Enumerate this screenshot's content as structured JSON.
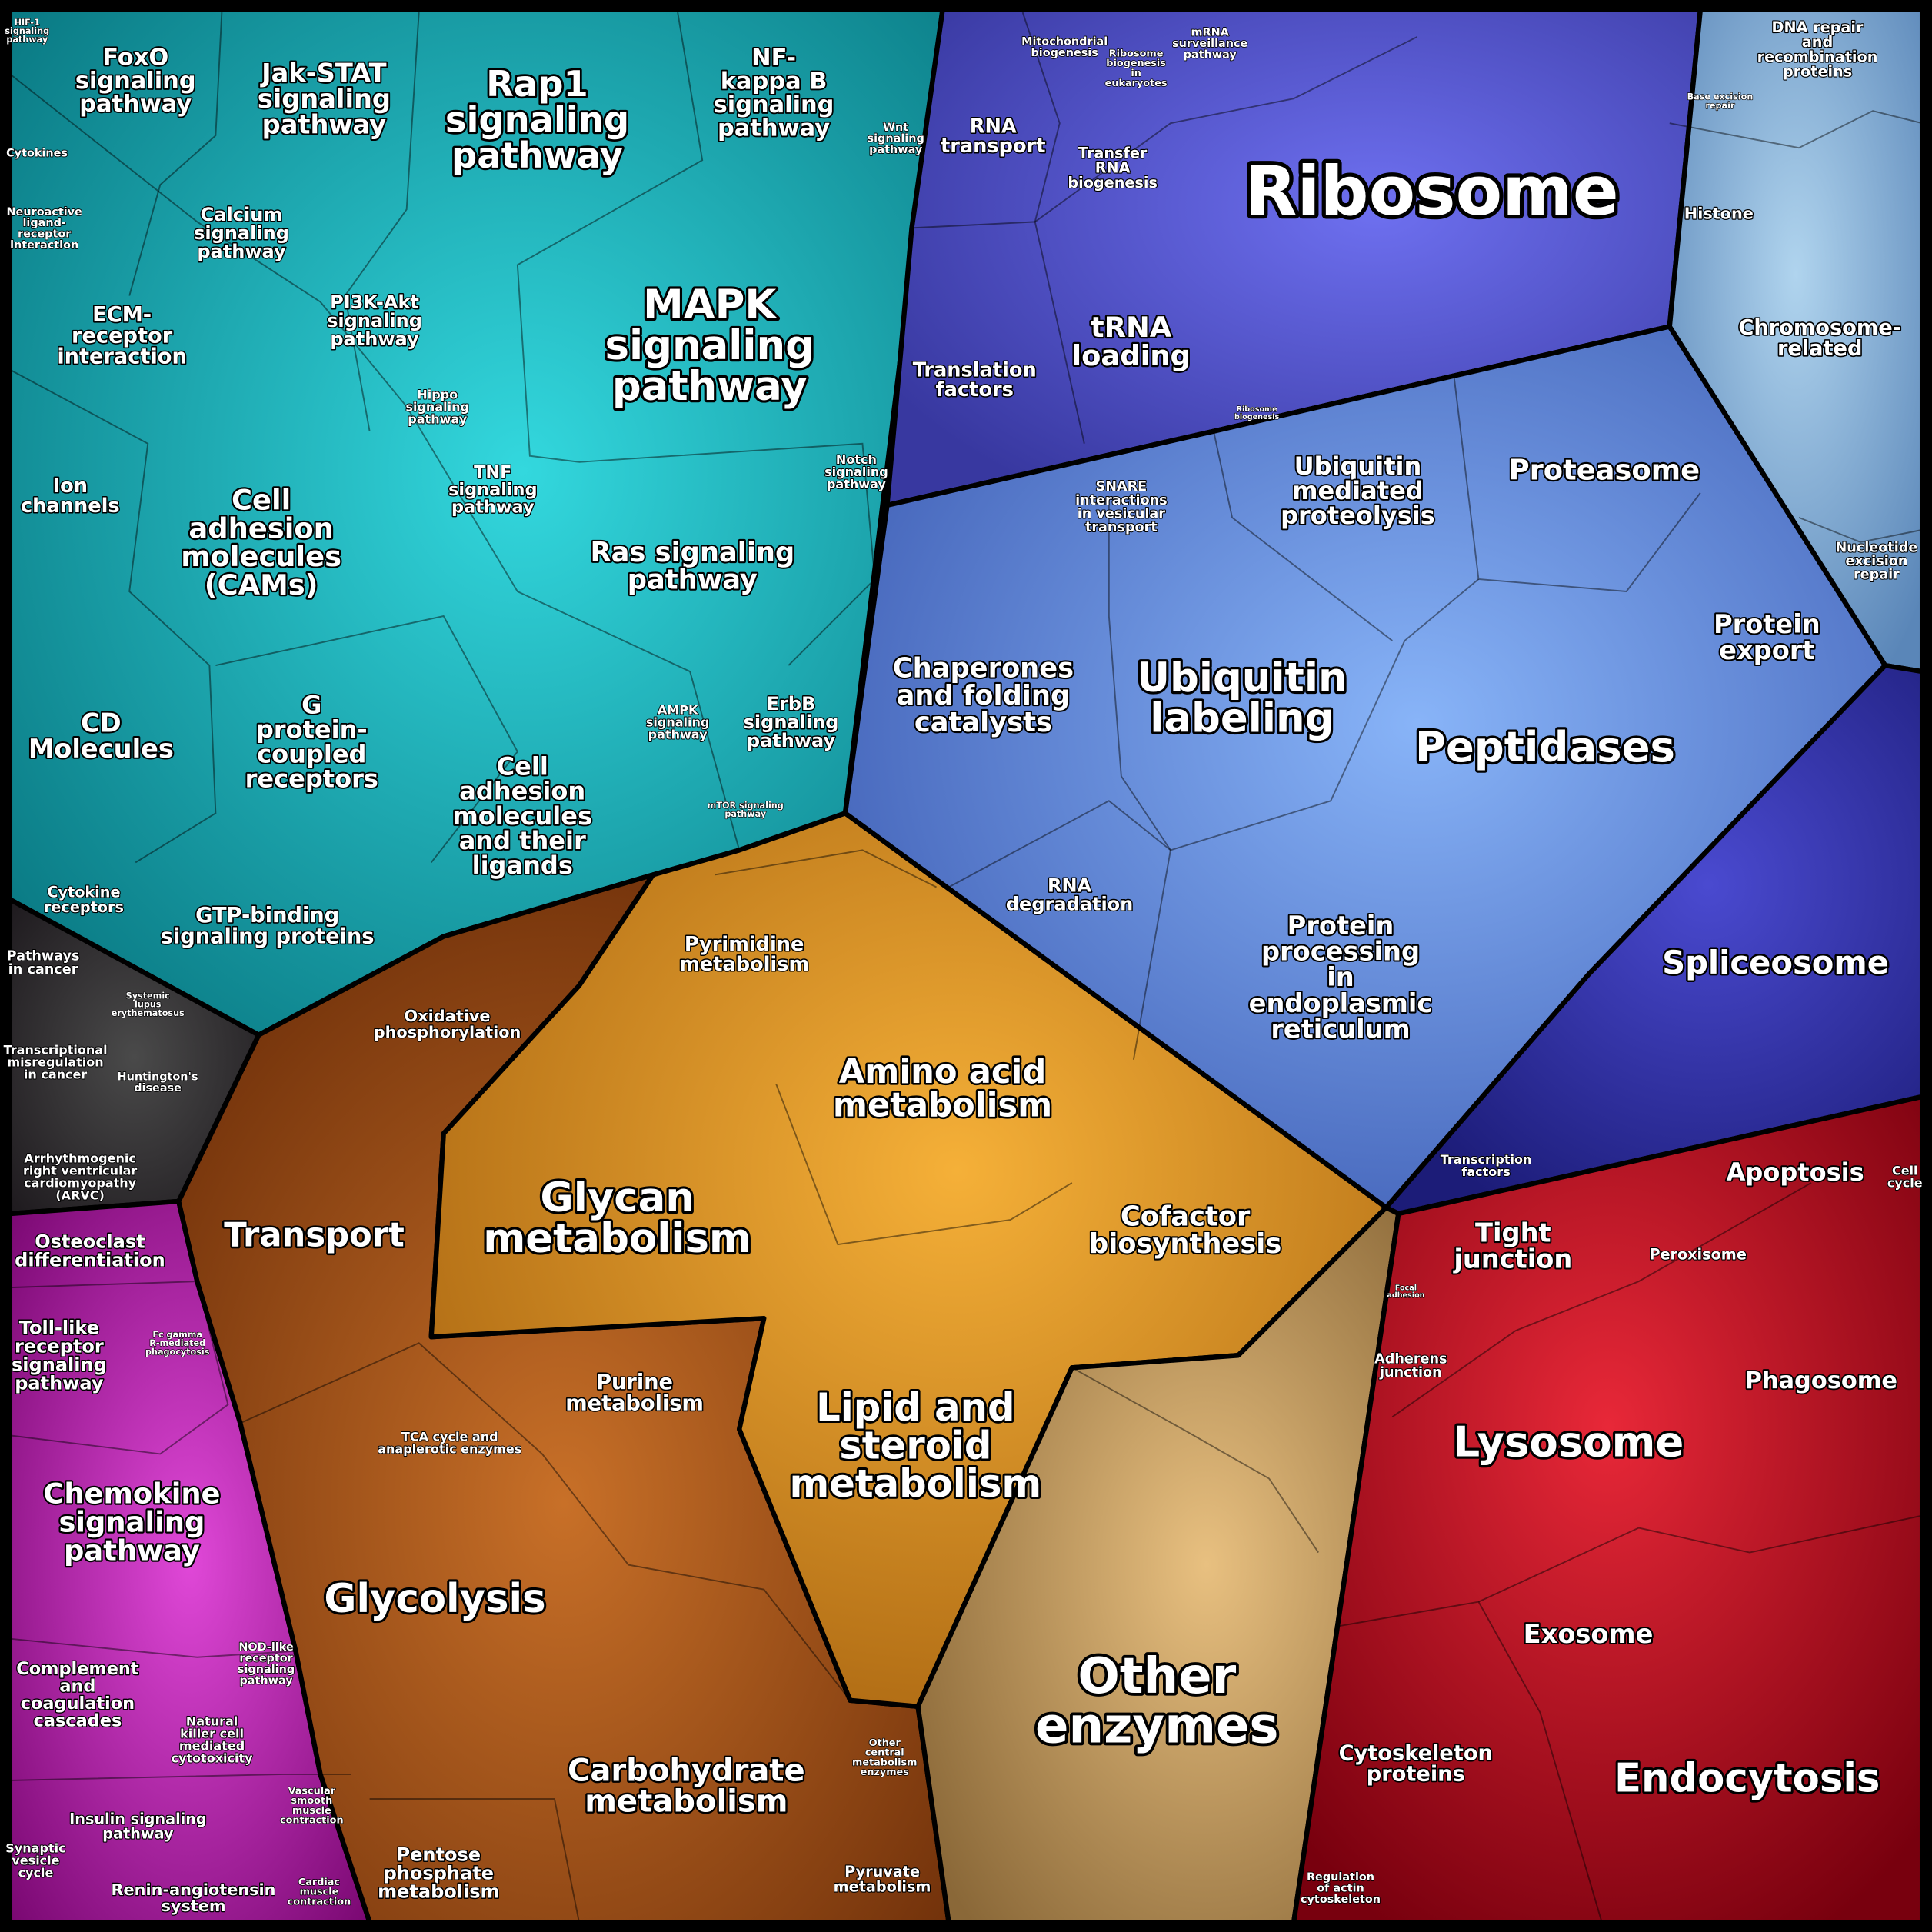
{
  "labels": [
    {
      "lines": [
        "HIF-1",
        "signaling",
        "pathway"
      ]
    },
    {
      "lines": [
        "FoxO",
        "signaling",
        "pathway"
      ]
    },
    {
      "lines": [
        "Jak-STAT",
        "signaling",
        "pathway"
      ]
    },
    {
      "lines": [
        "Rap1",
        "signaling",
        "pathway"
      ]
    },
    {
      "lines": [
        "NF-",
        "kappa B",
        "signaling",
        "pathway"
      ]
    },
    {
      "lines": [
        "Wnt",
        "signaling",
        "pathway"
      ]
    },
    {
      "lines": [
        "Cytokines"
      ]
    },
    {
      "lines": [
        "Neuroactive",
        "ligand-",
        "receptor",
        "interaction"
      ]
    },
    {
      "lines": [
        "Calcium",
        "signaling",
        "pathway"
      ]
    },
    {
      "lines": [
        "ECM-",
        "receptor",
        "interaction"
      ]
    },
    {
      "lines": [
        "PI3K-Akt",
        "signaling",
        "pathway"
      ]
    },
    {
      "lines": [
        "MAPK",
        "signaling",
        "pathway"
      ]
    },
    {
      "lines": [
        "Hippo",
        "signaling",
        "pathway"
      ]
    },
    {
      "lines": [
        "Notch",
        "signaling",
        "pathway"
      ]
    },
    {
      "lines": [
        "Ion",
        "channels"
      ]
    },
    {
      "lines": [
        "Cell",
        "adhesion",
        "molecules",
        "(CAMs)"
      ]
    },
    {
      "lines": [
        "TNF",
        "signaling",
        "pathway"
      ]
    },
    {
      "lines": [
        "Ras signaling",
        "pathway"
      ]
    },
    {
      "lines": [
        "CD",
        "Molecules"
      ]
    },
    {
      "lines": [
        "G",
        "protein-",
        "coupled",
        "receptors"
      ]
    },
    {
      "lines": [
        "Cell",
        "adhesion",
        "molecules",
        "and their",
        "ligands"
      ]
    },
    {
      "lines": [
        "AMPK",
        "signaling",
        "pathway"
      ]
    },
    {
      "lines": [
        "ErbB",
        "signaling",
        "pathway"
      ]
    },
    {
      "lines": [
        "mTOR signaling",
        "pathway"
      ]
    },
    {
      "lines": [
        "Cytokine",
        "receptors"
      ]
    },
    {
      "lines": [
        "GTP-binding",
        "signaling proteins"
      ]
    },
    {
      "lines": [
        "Pathways",
        "in cancer"
      ]
    },
    {
      "lines": [
        "Systemic",
        "lupus",
        "erythematosus"
      ]
    },
    {
      "lines": [
        "Transcriptional",
        "misregulation",
        "in cancer"
      ]
    },
    {
      "lines": [
        "Huntington's",
        "disease"
      ]
    },
    {
      "lines": [
        "Arrhythmogenic",
        "right ventricular",
        "cardiomyopathy",
        "(ARVC)"
      ]
    },
    {
      "lines": [
        "Osteoclast",
        "differentiation"
      ]
    },
    {
      "lines": [
        "Toll-like",
        "receptor",
        "signaling",
        "pathway"
      ]
    },
    {
      "lines": [
        "Fc gamma",
        "R-mediated",
        "phagocytosis"
      ]
    },
    {
      "lines": [
        "Chemokine",
        "signaling",
        "pathway"
      ]
    },
    {
      "lines": [
        "Complement",
        "and",
        "coagulation",
        "cascades"
      ]
    },
    {
      "lines": [
        "NOD-like",
        "receptor",
        "signaling",
        "pathway"
      ]
    },
    {
      "lines": [
        "Natural",
        "killer cell",
        "mediated",
        "cytotoxicity"
      ]
    },
    {
      "lines": [
        "Insulin signaling",
        "pathway"
      ]
    },
    {
      "lines": [
        "Synaptic",
        "vesicle",
        "cycle"
      ]
    },
    {
      "lines": [
        "Renin-angiotensin",
        "system"
      ]
    },
    {
      "lines": [
        "Vascular",
        "smooth",
        "muscle",
        "contraction"
      ]
    },
    {
      "lines": [
        "Cardiac",
        "muscle",
        "contraction"
      ]
    },
    {
      "lines": [
        "Oxidative",
        "phosphorylation"
      ]
    },
    {
      "lines": [
        "Pyrimidine",
        "metabolism"
      ]
    },
    {
      "lines": [
        "Amino acid",
        "metabolism"
      ]
    },
    {
      "lines": [
        "Transport"
      ]
    },
    {
      "lines": [
        "Glycan",
        "metabolism"
      ]
    },
    {
      "lines": [
        "Cofactor",
        "biosynthesis"
      ]
    },
    {
      "lines": [
        "Purine",
        "metabolism"
      ]
    },
    {
      "lines": [
        "Lipid and",
        "steroid",
        "metabolism"
      ]
    },
    {
      "lines": [
        "TCA cycle and",
        "anaplerotic enzymes"
      ]
    },
    {
      "lines": [
        "Glycolysis"
      ]
    },
    {
      "lines": [
        "Other",
        "enzymes"
      ]
    },
    {
      "lines": [
        "Carbohydrate",
        "metabolism"
      ]
    },
    {
      "lines": [
        "Other",
        "central",
        "metabolism",
        "enzymes"
      ]
    },
    {
      "lines": [
        "Pentose",
        "phosphate",
        "metabolism"
      ]
    },
    {
      "lines": [
        "Pyruvate",
        "metabolism"
      ]
    },
    {
      "lines": [
        "Mitochondrial",
        "biogenesis"
      ]
    },
    {
      "lines": [
        "Ribosome",
        "biogenesis",
        "in",
        "eukaryotes"
      ]
    },
    {
      "lines": [
        "mRNA",
        "surveillance",
        "pathway"
      ]
    },
    {
      "lines": [
        "RNA",
        "transport"
      ]
    },
    {
      "lines": [
        "Transfer",
        "RNA",
        "biogenesis"
      ]
    },
    {
      "lines": [
        "Ribosome"
      ]
    },
    {
      "lines": [
        "DNA repair",
        "and",
        "recombination",
        "proteins"
      ]
    },
    {
      "lines": [
        "Base excision",
        "repair"
      ]
    },
    {
      "lines": [
        "Histone"
      ]
    },
    {
      "lines": [
        "Chromosome-",
        "related"
      ]
    },
    {
      "lines": [
        "tRNA",
        "loading"
      ]
    },
    {
      "lines": [
        "Translation",
        "factors"
      ]
    },
    {
      "lines": [
        "Ribosome",
        "biogenesis"
      ]
    },
    {
      "lines": [
        "Ubiquitin",
        "mediated",
        "proteolysis"
      ]
    },
    {
      "lines": [
        "Proteasome"
      ]
    },
    {
      "lines": [
        "SNARE",
        "interactions",
        "in vesicular",
        "transport"
      ]
    },
    {
      "lines": [
        "Nucleotide",
        "excision",
        "repair"
      ]
    },
    {
      "lines": [
        "Chaperones",
        "and folding",
        "catalysts"
      ]
    },
    {
      "lines": [
        "Ubiquitin",
        "labeling"
      ]
    },
    {
      "lines": [
        "Protein",
        "export"
      ]
    },
    {
      "lines": [
        "Peptidases"
      ]
    },
    {
      "lines": [
        "RNA",
        "degradation"
      ]
    },
    {
      "lines": [
        "Protein",
        "processing",
        "in",
        "endoplasmic",
        "reticulum"
      ]
    },
    {
      "lines": [
        "Spliceosome"
      ]
    },
    {
      "lines": [
        "Transcription",
        "factors"
      ]
    },
    {
      "lines": [
        "Apoptosis"
      ]
    },
    {
      "lines": [
        "Cell",
        "cycle"
      ]
    },
    {
      "lines": [
        "Tight",
        "junction"
      ]
    },
    {
      "lines": [
        "Peroxisome"
      ]
    },
    {
      "lines": [
        "Focal",
        "adhesion"
      ]
    },
    {
      "lines": [
        "Adherens",
        "junction"
      ]
    },
    {
      "lines": [
        "Phagosome"
      ]
    },
    {
      "lines": [
        "Lysosome"
      ]
    },
    {
      "lines": [
        "Exosome"
      ]
    },
    {
      "lines": [
        "Cytoskeleton",
        "proteins"
      ]
    },
    {
      "lines": [
        "Endocytosis"
      ]
    },
    {
      "lines": [
        "Regulation",
        "of actin",
        "cytoskeleton"
      ]
    }
  ]
}
